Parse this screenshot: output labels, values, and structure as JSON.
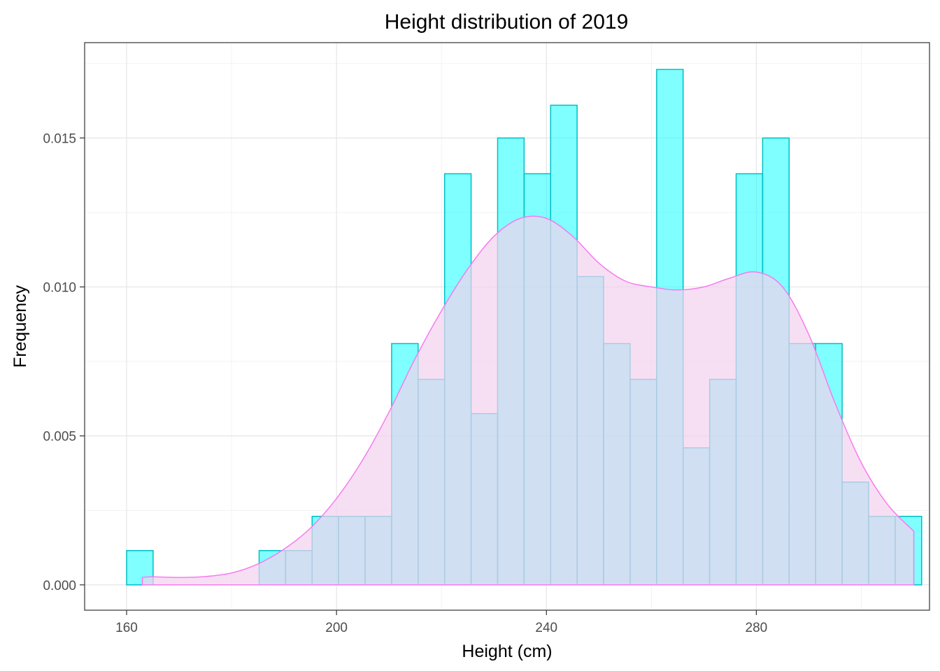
{
  "chart_data": {
    "type": "bar",
    "subtype": "histogram-with-density",
    "title": "Height distribution of 2019",
    "xlabel": "Height (cm)",
    "ylabel": "Frequency",
    "xlim": [
      152,
      313
    ],
    "ylim": [
      -0.00085,
      0.0182
    ],
    "x_ticks": [
      160,
      200,
      240,
      280
    ],
    "x_tick_labels": [
      "160",
      "200",
      "240",
      "280"
    ],
    "y_ticks": [
      0.0,
      0.005,
      0.01,
      0.015
    ],
    "y_tick_labels": [
      "0.000",
      "0.005",
      "0.010",
      "0.015"
    ],
    "grid": true,
    "colors": {
      "hist_fill": "#00FFFF",
      "hist_fill_opacity": 0.5,
      "hist_stroke": "#00BFC4",
      "density_fill": "#F3D1EE",
      "density_fill_opacity": 0.7,
      "density_stroke": "#F77BF0",
      "panel_border": "#333333",
      "grid_major": "#E6E6E6",
      "grid_minor": "#F2F2F2"
    },
    "histogram": {
      "bin_width": 5.05,
      "bins": [
        {
          "x0": 160.0,
          "x1": 165.05,
          "y": 0.00115
        },
        {
          "x0": 165.05,
          "x1": 170.1,
          "y": 0
        },
        {
          "x0": 170.1,
          "x1": 175.15,
          "y": 0
        },
        {
          "x0": 175.15,
          "x1": 180.2,
          "y": 0
        },
        {
          "x0": 180.2,
          "x1": 185.25,
          "y": 0
        },
        {
          "x0": 185.25,
          "x1": 190.3,
          "y": 0.00115
        },
        {
          "x0": 190.3,
          "x1": 195.35,
          "y": 0.00115
        },
        {
          "x0": 195.35,
          "x1": 200.4,
          "y": 0.0023
        },
        {
          "x0": 200.4,
          "x1": 205.45,
          "y": 0.0023
        },
        {
          "x0": 205.45,
          "x1": 210.5,
          "y": 0.0023
        },
        {
          "x0": 210.5,
          "x1": 215.55,
          "y": 0.0081
        },
        {
          "x0": 215.55,
          "x1": 220.6,
          "y": 0.0069
        },
        {
          "x0": 220.6,
          "x1": 225.65,
          "y": 0.0138
        },
        {
          "x0": 225.65,
          "x1": 230.7,
          "y": 0.00575
        },
        {
          "x0": 230.7,
          "x1": 235.75,
          "y": 0.015
        },
        {
          "x0": 235.75,
          "x1": 240.8,
          "y": 0.0138
        },
        {
          "x0": 240.8,
          "x1": 245.85,
          "y": 0.0161
        },
        {
          "x0": 245.85,
          "x1": 250.9,
          "y": 0.01035
        },
        {
          "x0": 250.9,
          "x1": 255.95,
          "y": 0.0081
        },
        {
          "x0": 255.95,
          "x1": 261.0,
          "y": 0.0069
        },
        {
          "x0": 261.0,
          "x1": 266.05,
          "y": 0.0173
        },
        {
          "x0": 266.05,
          "x1": 271.1,
          "y": 0.0046
        },
        {
          "x0": 271.1,
          "x1": 276.15,
          "y": 0.0069
        },
        {
          "x0": 276.15,
          "x1": 281.2,
          "y": 0.0138
        },
        {
          "x0": 281.2,
          "x1": 286.25,
          "y": 0.015
        },
        {
          "x0": 286.25,
          "x1": 291.3,
          "y": 0.0081
        },
        {
          "x0": 291.3,
          "x1": 296.35,
          "y": 0.0081
        },
        {
          "x0": 296.35,
          "x1": 301.4,
          "y": 0.00345
        },
        {
          "x0": 301.4,
          "x1": 306.45,
          "y": 0.0023
        },
        {
          "x0": 306.45,
          "x1": 311.5,
          "y": 0.0023
        }
      ]
    },
    "density": {
      "x": [
        163,
        165,
        170,
        175,
        180,
        185,
        190,
        195,
        200,
        205,
        210,
        215,
        220,
        225,
        230,
        235,
        240,
        245,
        250,
        255,
        260,
        265,
        270,
        275,
        280,
        285,
        290,
        295,
        300,
        305,
        310
      ],
      "y": [
        0.00025,
        0.00027,
        0.00025,
        0.00028,
        0.0004,
        0.0007,
        0.0012,
        0.0019,
        0.0029,
        0.0042,
        0.0058,
        0.0076,
        0.0092,
        0.0106,
        0.0117,
        0.0123,
        0.0123,
        0.0117,
        0.0108,
        0.0102,
        0.01,
        0.0099,
        0.01,
        0.0103,
        0.0105,
        0.01,
        0.0084,
        0.0061,
        0.0041,
        0.0027,
        0.0018
      ]
    }
  }
}
